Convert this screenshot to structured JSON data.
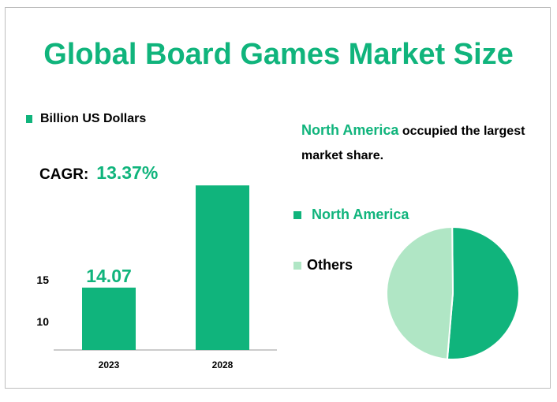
{
  "title": "Global Board Games Market Size",
  "colors": {
    "accent": "#10b47c",
    "light": "#b0e6c5",
    "axis": "#999999"
  },
  "unit_legend": "Billion US Dollars",
  "cagr": {
    "label": "CAGR:",
    "value": "13.37%"
  },
  "share_note": {
    "highlight": "North America",
    "rest_line1": " occupied the largest",
    "rest_line2": "market share."
  },
  "chart_data": [
    {
      "type": "bar",
      "categories": [
        "2023",
        "2028"
      ],
      "values": [
        14.07,
        26.3
      ],
      "data_labels": [
        "14.07",
        ""
      ],
      "ylabel": "Billion US Dollars",
      "y_ticks": [
        "10",
        "15"
      ],
      "ylim": [
        7,
        27.2
      ],
      "grid": false
    },
    {
      "type": "pie",
      "labels": [
        "North America",
        "Others"
      ],
      "values": [
        51.5,
        48.5
      ],
      "colors": [
        "#10b47c",
        "#b0e6c5"
      ],
      "legend": "left"
    }
  ]
}
